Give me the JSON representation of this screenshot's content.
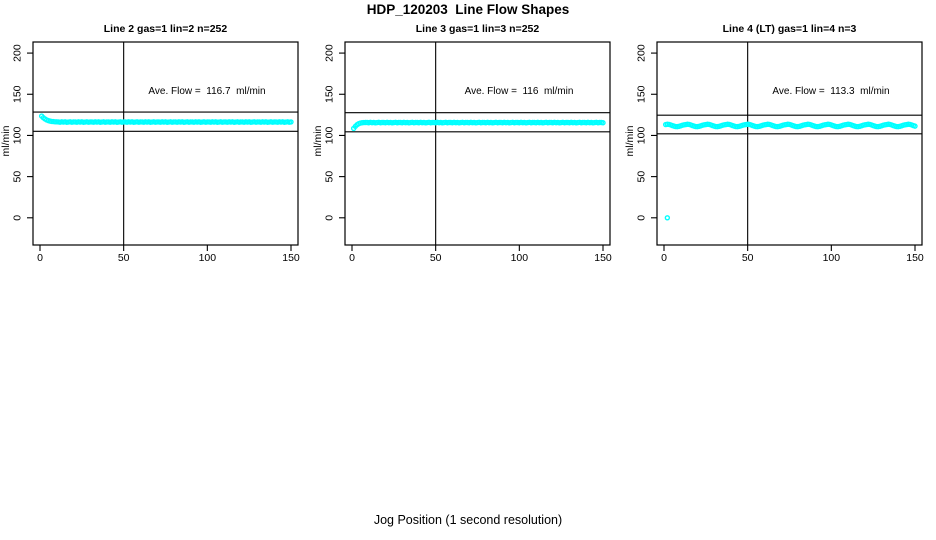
{
  "page": {
    "title": "HDP_120203  Line Flow Shapes",
    "xlabel": "Jog Position (1 second resolution)"
  },
  "colors": {
    "marker": "#00FFFF",
    "axis": "#000000",
    "background": "#FFFFFF"
  },
  "chart_data": [
    {
      "type": "scatter",
      "title": "Line 2 gas=1 lin=2 n=252",
      "ylabel": "ml/min",
      "annotation": "Ave. Flow =  116.7  ml/min",
      "ave_flow_ml_min": 116.7,
      "n_in_title": 252,
      "xlim": [
        0,
        150
      ],
      "ylim": [
        0,
        200
      ],
      "x_ticks": [
        0,
        50,
        100,
        150
      ],
      "y_ticks": [
        0,
        50,
        100,
        150,
        200
      ],
      "ref_lines_h": [
        128.4,
        105.0
      ],
      "ref_lines_v": [
        50
      ],
      "series": {
        "x_start": 1,
        "x_step": 1,
        "y": [
          123.5,
          121.5,
          120,
          118.8,
          118,
          117.4,
          117,
          116.8,
          116.6,
          116.5,
          116.4,
          116.1,
          116.6,
          116.2,
          116.5,
          116,
          116.3,
          116.6,
          116.1,
          116.4,
          116.4,
          116.1,
          116.6,
          116.2,
          116.5,
          116,
          116.3,
          116.6,
          116.1,
          116.4,
          116.4,
          116.1,
          116.6,
          116.2,
          116.5,
          116,
          116.3,
          116.6,
          116.1,
          116.4,
          116.4,
          116.1,
          116.6,
          116.2,
          116.5,
          116,
          116.3,
          116.6,
          116.1,
          116.4,
          116.4,
          116.1,
          116.6,
          116.2,
          116.5,
          116,
          116.3,
          116.6,
          116.1,
          116.4,
          116.4,
          116.1,
          116.6,
          116.2,
          116.5,
          116,
          116.3,
          116.6,
          116.1,
          116.4,
          116.4,
          116.1,
          116.6,
          116.2,
          116.5,
          116,
          116.3,
          116.6,
          116.1,
          116.4,
          116.4,
          116.1,
          116.6,
          116.2,
          116.5,
          116,
          116.3,
          116.6,
          116.1,
          116.4,
          116.4,
          116.1,
          116.6,
          116.2,
          116.5,
          116,
          116.3,
          116.6,
          116.1,
          116.4,
          116.4,
          116.1,
          116.6,
          116.2,
          116.5,
          116,
          116.3,
          116.6,
          116.1,
          116.4,
          116.4,
          116.1,
          116.6,
          116.2,
          116.5,
          116,
          116.3,
          116.6,
          116.1,
          116.4,
          116.4,
          116.1,
          116.6,
          116.2,
          116.5,
          116,
          116.3,
          116.6,
          116.1,
          116.4,
          116.4,
          116.1,
          116.6,
          116.2,
          116.5,
          116,
          116.3,
          116.6,
          116.1,
          116.4,
          116.4,
          116.1,
          116.6,
          116.2,
          116.5,
          116,
          116.3,
          116.6,
          116.1,
          116.4
        ]
      },
      "extra_points": []
    },
    {
      "type": "scatter",
      "title": "Line 3 gas=1 lin=3 n=252",
      "ylabel": "ml/min",
      "annotation": "Ave. Flow =  116  ml/min",
      "ave_flow_ml_min": 116,
      "n_in_title": 252,
      "xlim": [
        0,
        150
      ],
      "ylim": [
        0,
        200
      ],
      "x_ticks": [
        0,
        50,
        100,
        150
      ],
      "y_ticks": [
        0,
        50,
        100,
        150,
        200
      ],
      "ref_lines_h": [
        127.6,
        104.4
      ],
      "ref_lines_v": [
        50
      ],
      "series": {
        "x_start": 1,
        "x_step": 1,
        "y": [
          108.5,
          111,
          113,
          114.3,
          115,
          115.4,
          115.6,
          115.7,
          115.7,
          115.4,
          115.9,
          115.5,
          115.8,
          115.3,
          115.6,
          115.9,
          115.4,
          115.7,
          115.7,
          115.4,
          115.9,
          115.5,
          115.8,
          115.3,
          115.6,
          115.9,
          115.4,
          115.7,
          115.7,
          115.4,
          115.9,
          115.5,
          115.8,
          115.3,
          115.6,
          115.9,
          115.4,
          115.7,
          115.7,
          115.4,
          115.9,
          115.5,
          115.8,
          115.3,
          115.6,
          115.9,
          115.4,
          115.7,
          115.7,
          115.4,
          115.9,
          115.5,
          115.8,
          115.3,
          115.6,
          115.9,
          115.4,
          115.7,
          115.7,
          115.4,
          115.9,
          115.5,
          115.8,
          115.3,
          115.6,
          115.9,
          115.4,
          115.7,
          115.7,
          115.4,
          115.9,
          115.5,
          115.8,
          115.3,
          115.6,
          115.9,
          115.4,
          115.7,
          115.7,
          115.4,
          115.9,
          115.5,
          115.8,
          115.3,
          115.6,
          115.9,
          115.4,
          115.7,
          115.7,
          115.4,
          115.9,
          115.5,
          115.8,
          115.3,
          115.6,
          115.9,
          115.4,
          115.7,
          115.7,
          115.4,
          115.9,
          115.5,
          115.8,
          115.3,
          115.6,
          115.9,
          115.4,
          115.7,
          115.7,
          115.4,
          115.9,
          115.5,
          115.8,
          115.3,
          115.6,
          115.9,
          115.4,
          115.7,
          115.7,
          115.4,
          115.9,
          115.5,
          115.8,
          115.3,
          115.6,
          115.9,
          115.4,
          115.7,
          115.7,
          115.4,
          115.9,
          115.5,
          115.8,
          115.3,
          115.6,
          115.9,
          115.4,
          115.7,
          115.7,
          115.4,
          115.9,
          115.5,
          115.8,
          115.3,
          115.6,
          115.9,
          115.4,
          115.7,
          115.7,
          115.4
        ]
      },
      "extra_points": []
    },
    {
      "type": "scatter",
      "title": "Line 4 (LT) gas=1 lin=4 n=3",
      "ylabel": "ml/min",
      "annotation": "Ave. Flow =  113.3  ml/min",
      "ave_flow_ml_min": 113.3,
      "n_in_title": 3,
      "xlim": [
        0,
        150
      ],
      "ylim": [
        0,
        200
      ],
      "x_ticks": [
        0,
        50,
        100,
        150
      ],
      "y_ticks": [
        0,
        50,
        100,
        150,
        200
      ],
      "ref_lines_h": [
        124.6,
        102.0
      ],
      "ref_lines_v": [
        50
      ],
      "series": {
        "x_start": 1,
        "x_step": 1,
        "y": [
          113.2,
          113.6,
          113.4,
          112.8,
          112,
          111.3,
          110.8,
          110.7,
          111.1,
          111.7,
          112.4,
          112.9,
          113.2,
          113.6,
          113.4,
          112.8,
          112,
          111.3,
          110.8,
          110.7,
          111.1,
          111.7,
          112.4,
          112.9,
          113.2,
          113.6,
          113.4,
          112.8,
          112,
          111.3,
          110.8,
          110.7,
          111.1,
          111.7,
          112.4,
          112.9,
          113.2,
          113.6,
          113.4,
          112.8,
          112,
          111.3,
          110.8,
          110.7,
          111.1,
          111.7,
          112.4,
          112.9,
          113.2,
          113.6,
          113.4,
          112.8,
          112,
          111.3,
          110.8,
          110.7,
          111.1,
          111.7,
          112.4,
          112.9,
          113.2,
          113.6,
          113.4,
          112.8,
          112,
          111.3,
          110.8,
          110.7,
          111.1,
          111.7,
          112.4,
          112.9,
          113.2,
          113.6,
          113.4,
          112.8,
          112,
          111.3,
          110.8,
          110.7,
          111.1,
          111.7,
          112.4,
          112.9,
          113.2,
          113.6,
          113.4,
          112.8,
          112,
          111.3,
          110.8,
          110.7,
          111.1,
          111.7,
          112.4,
          112.9,
          113.2,
          113.6,
          113.4,
          112.8,
          112,
          111.3,
          110.8,
          110.7,
          111.1,
          111.7,
          112.4,
          112.9,
          113.2,
          113.6,
          113.4,
          112.8,
          112,
          111.3,
          110.8,
          110.7,
          111.1,
          111.7,
          112.4,
          112.9,
          113.2,
          113.6,
          113.4,
          112.8,
          112,
          111.3,
          110.8,
          110.7,
          111.1,
          111.7,
          112.4,
          112.9,
          113.2,
          113.6,
          113.4,
          112.8,
          112,
          111.3,
          110.8,
          110.7,
          111.1,
          111.7,
          112.4,
          112.9,
          113.2,
          113.6,
          113.4,
          112.8,
          112,
          111.3
        ]
      },
      "extra_points": [
        [
          2,
          0
        ]
      ]
    }
  ]
}
